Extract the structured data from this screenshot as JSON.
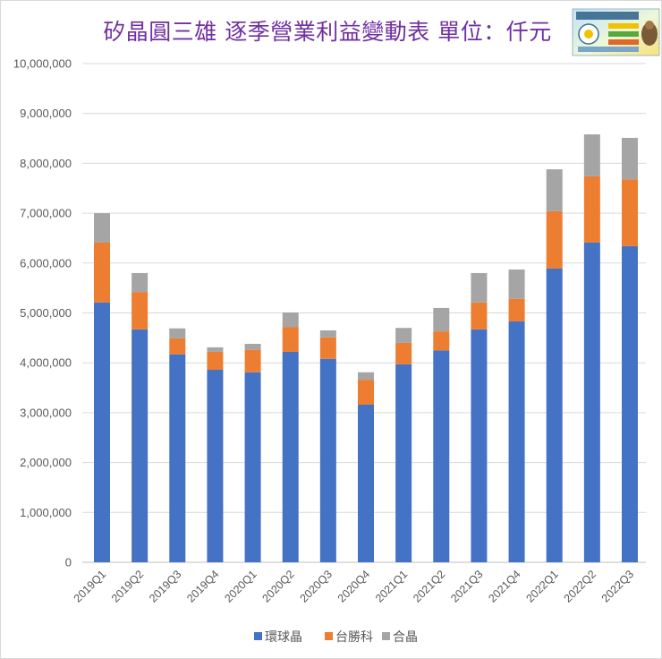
{
  "chart_data": {
    "type": "bar",
    "stacked": true,
    "title": "矽晶圓三雄 逐季營業利益變動表 單位：仟元",
    "title_color": "#7030A0",
    "xlabel": "",
    "ylabel": "",
    "ylim": [
      0,
      10000000
    ],
    "grid": true,
    "legend": "bottom",
    "ytick_values": [
      0,
      1000000,
      2000000,
      3000000,
      4000000,
      5000000,
      6000000,
      7000000,
      8000000,
      9000000,
      10000000
    ],
    "ytick_labels": [
      "0",
      "1,000,000",
      "2,000,000",
      "3,000,000",
      "4,000,000",
      "5,000,000",
      "6,000,000",
      "7,000,000",
      "8,000,000",
      "9,000,000",
      "10,000,000"
    ],
    "categories": [
      "2019Q1",
      "2019Q2",
      "2019Q3",
      "2019Q4",
      "2020Q1",
      "2020Q2",
      "2020Q3",
      "2020Q4",
      "2021Q1",
      "2021Q2",
      "2021Q3",
      "2021Q4",
      "2022Q1",
      "2022Q2",
      "2022Q3"
    ],
    "series": [
      {
        "name": "環球晶",
        "color": "#4472C4",
        "values": [
          5210000,
          4670000,
          4170000,
          3860000,
          3810000,
          4220000,
          4080000,
          3160000,
          3970000,
          4250000,
          4670000,
          4830000,
          5890000,
          6410000,
          6340000
        ]
      },
      {
        "name": "台勝科",
        "color": "#ED7D31",
        "values": [
          1200000,
          750000,
          320000,
          360000,
          450000,
          500000,
          430000,
          500000,
          430000,
          380000,
          540000,
          450000,
          1150000,
          1330000,
          1340000
        ]
      },
      {
        "name": "合晶",
        "color": "#A5A5A5",
        "values": [
          590000,
          380000,
          200000,
          90000,
          120000,
          290000,
          140000,
          150000,
          300000,
          470000,
          590000,
          590000,
          840000,
          840000,
          830000
        ]
      }
    ]
  }
}
